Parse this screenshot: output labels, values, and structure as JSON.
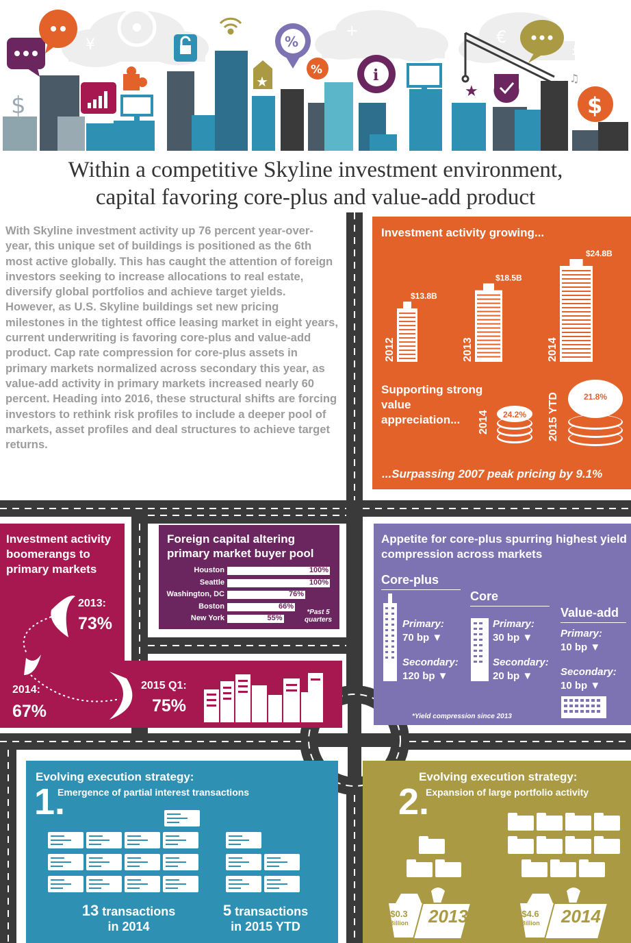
{
  "header": {
    "title_line1": "Within a competitive Skyline investment environment,",
    "title_line2": "capital favoring core-plus and value-add product"
  },
  "intro_text": "With Skyline investment activity up 76 percent year-over-year, this unique set of buildings is positioned as the 6th most active globally. This has caught the attention of foreign investors seeking to increase allocations to real estate, diversify global portfolios and achieve target yields. However, as U.S. Skyline buildings set new pricing milestones in the tightest office leasing market in eight years, current underwriting is favoring core-plus and value-add product. Cap rate compression for core-plus assets in primary markets normalized across secondary this year, as value-add activity in primary markets increased nearly 60 percent. Heading into 2016, these structural shifts are forcing investors to rethink risk profiles to include a deeper pool of markets, asset profiles and deal structures to achieve target returns.",
  "investment_panel": {
    "heading": "Investment activity growing...",
    "bars": [
      {
        "year": "2012",
        "value": 13.8,
        "label": "$13.8B"
      },
      {
        "year": "2013",
        "value": 18.5,
        "label": "$18.5B"
      },
      {
        "year": "2014",
        "value": 24.8,
        "label": "$24.8B"
      }
    ],
    "supporting_text": "Supporting strong value appreciation...",
    "appreciation": [
      {
        "year": "2014",
        "label": "24.2%"
      },
      {
        "year": "2015 YTD",
        "label": "21.8%"
      }
    ],
    "footer": "...Surpassing 2007 peak pricing by 9.1%"
  },
  "boomerang_panel": {
    "heading": "Investment activity boomerangs to primary markets",
    "points": [
      {
        "label": "2013:",
        "value": "73%"
      },
      {
        "label": "2014:",
        "value": "67%"
      },
      {
        "label": "2015 Q1:",
        "value": "75%"
      }
    ]
  },
  "foreign_panel": {
    "heading": "Foreign capital altering primary market buyer pool",
    "rows": [
      {
        "city": "Houston",
        "value": 100,
        "label": "100%"
      },
      {
        "city": "Seattle",
        "value": 100,
        "label": "100%"
      },
      {
        "city": "Washington, DC",
        "value": 76,
        "label": "76%"
      },
      {
        "city": "Boston",
        "value": 66,
        "label": "66%"
      },
      {
        "city": "New York",
        "value": 55,
        "label": "55%"
      }
    ],
    "note": "*Past 5 quarters"
  },
  "appetite_panel": {
    "heading": "Appetite for core-plus spurring highest yield compression across markets",
    "groups": [
      {
        "name": "Core-plus",
        "primary_label": "Primary:",
        "primary": "70 bp ▼",
        "secondary_label": "Secondary:",
        "secondary": "120 bp ▼"
      },
      {
        "name": "Core",
        "primary_label": "Primary:",
        "primary": "30 bp ▼",
        "secondary_label": "Secondary:",
        "secondary": "20 bp ▼"
      },
      {
        "name": "Value-add",
        "primary_label": "Primary:",
        "primary": "10 bp ▼",
        "secondary_label": "Secondary:",
        "secondary": "10 bp ▼"
      }
    ],
    "note": "*Yield compression since 2013"
  },
  "strategy1": {
    "heading": "Evolving execution strategy:",
    "number": "1.",
    "subheading": "Emergence of partial interest transactions",
    "left_count": "13",
    "left_word": "transactions",
    "left_period": "in 2014",
    "right_count": "5",
    "right_word": "transactions",
    "right_period": "in 2015 YTD"
  },
  "strategy2": {
    "heading": "Evolving execution strategy:",
    "number": "2.",
    "subheading": "Expansion of large portfolio activity",
    "bags": [
      {
        "amount": "$0.3",
        "unit": "Billion",
        "year": "2013"
      },
      {
        "amount": "$4.6",
        "unit": "Billion",
        "year": "2014"
      }
    ]
  },
  "colors": {
    "orange": "#e2622a",
    "magenta": "#a6184f",
    "purple": "#6b2660",
    "lavender": "#7d72b2",
    "teal": "#2e91b4",
    "olive": "#a99a43",
    "road": "#3a3a3a"
  }
}
